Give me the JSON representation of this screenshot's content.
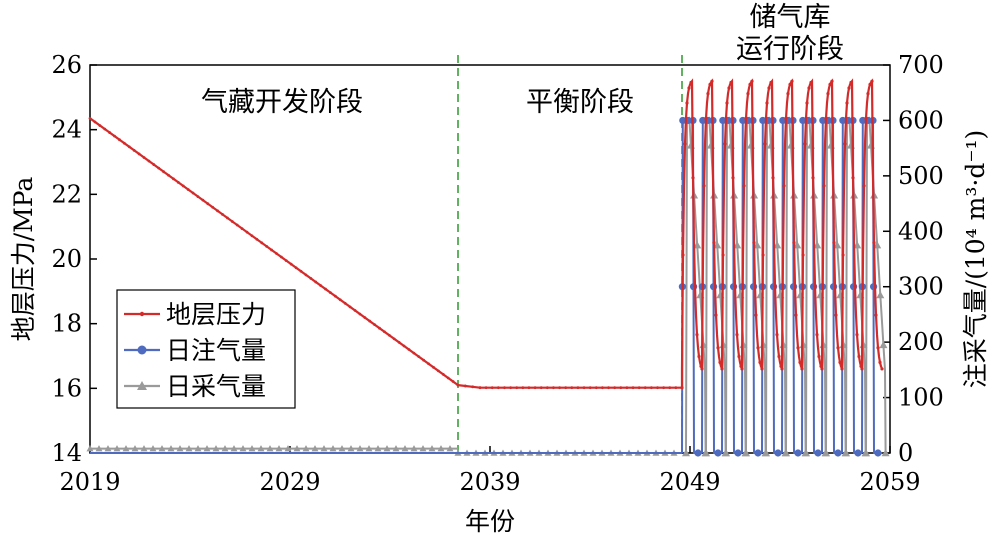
{
  "chart_data": {
    "type": "line",
    "xlabel": "年份",
    "ylabel_left": "地层压力/MPa",
    "ylabel_right": "注采气量/(10⁴ m³·d⁻¹)",
    "x_ticks": [
      2019,
      2029,
      2039,
      2049,
      2059
    ],
    "xlim": [
      2019,
      2059
    ],
    "y_left_ticks": [
      14,
      16,
      18,
      20,
      22,
      24,
      26
    ],
    "ylim_left": [
      14,
      26
    ],
    "y_right_ticks": [
      0,
      100,
      200,
      300,
      400,
      500,
      600,
      700
    ],
    "ylim_right": [
      0,
      700
    ],
    "phases": [
      {
        "label": "气藏开发阶段",
        "x_start": 2019,
        "x_end": 2037.4
      },
      {
        "label": "平衡阶段",
        "x_start": 2037.4,
        "x_end": 2048.6
      },
      {
        "label_lines": [
          "储气库",
          "运行阶段"
        ],
        "x_start": 2048.6,
        "x_end": 2059
      }
    ],
    "phase_boundaries": [
      2037.4,
      2048.6
    ],
    "legend": {
      "placement": "left-middle"
    },
    "series": [
      {
        "name": "地层压力",
        "axis": "left",
        "color": "#d42a2a",
        "marker": "small-dot",
        "segments": [
          {
            "x": [
              2019,
              2037.4
            ],
            "y": [
              24.35,
              16.1
            ]
          },
          {
            "x": [
              2037.4,
              2038.5,
              2048.6
            ],
            "y": [
              16.1,
              16.02,
              16.02
            ]
          }
        ],
        "cycles": {
          "start": 2048.6,
          "period": 1,
          "count": 10,
          "max": 25.5,
          "min": 16.6,
          "y_start": 16.02
        }
      },
      {
        "name": "日注气量",
        "axis": "right",
        "color": "#4f6bbf",
        "marker": "circle",
        "baseline": 0,
        "cycles": {
          "start": 2048.6,
          "period": 1,
          "count": 10,
          "max": 600,
          "min": 0
        }
      },
      {
        "name": "日采气量",
        "axis": "right",
        "color": "#9a9a9a",
        "marker": "triangle",
        "baseline_segments": [
          {
            "x": [
              2019,
              2037.4
            ],
            "y": 8
          },
          {
            "x": [
              2037.4,
              2048.6
            ],
            "y": 0
          }
        ],
        "cycles": {
          "start": 2048.8,
          "period": 1,
          "count": 10,
          "max": 600,
          "min": 0
        }
      }
    ]
  }
}
